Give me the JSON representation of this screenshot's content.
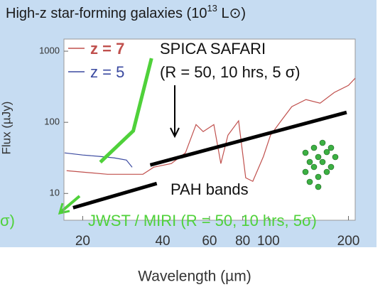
{
  "chart_data": {
    "type": "line",
    "title": "High-z  star-forming galaxies (10",
    "title_superscript": "13",
    "title_end": " L⊙)",
    "x_label": "Wavelength (µm)",
    "y_label": "Flux (µJy)",
    "xscale": "log",
    "yscale": "log",
    "xlim": [
      17,
      212
    ],
    "ylim": [
      4.2,
      1480
    ],
    "xticks": [
      20,
      40,
      60,
      80,
      100,
      200
    ],
    "yticks": [
      10,
      100,
      1000
    ],
    "annotations": [
      "SPICA SAFARI",
      "(R = 50, 10 hrs, 5 σ)",
      "PAH bands",
      "JWST / MIRI (R = 50, 10 hrs, 5σ)",
      "σ)"
    ],
    "series": [
      {
        "name": "z = 7",
        "color": "#c0504d",
        "x": [
          17.4,
          24.8,
          33.7,
          37.0,
          43.1,
          48.7,
          53.4,
          56.8,
          62.3,
          66.2,
          70.4,
          77.2,
          82.1,
          87.3,
          95.7,
          101.8,
          111.6,
          122.4,
          138.4,
          156.4,
          176.9,
          200,
          212
        ],
        "values": [
          20.9,
          18.6,
          18.6,
          23.4,
          26.3,
          37.2,
          93,
          74,
          93,
          26.3,
          66,
          105,
          16.6,
          14.8,
          33,
          66,
          105,
          166,
          209,
          186,
          263,
          331,
          417
        ]
      },
      {
        "name": "z = 5",
        "color": "#3b4aa0",
        "x": [
          17.1,
          20,
          23.3,
          26.3,
          29.2,
          30.7
        ],
        "values": [
          37.2,
          34.7,
          33.1,
          31.6,
          29.5,
          23.4
        ]
      },
      {
        "color": "#4fd13a",
        "x": [
          23.3,
          31.0,
          36.3
        ],
        "values": [
          27.5,
          75.9,
          794
        ]
      },
      {
        "color": "#000000",
        "x": [
          35.9,
          196.8
        ],
        "values": [
          25.1,
          138
        ]
      },
      {
        "color": "#000000",
        "x": [
          18.4,
          38
        ],
        "values": [
          6.3,
          13.8
        ]
      }
    ]
  }
}
